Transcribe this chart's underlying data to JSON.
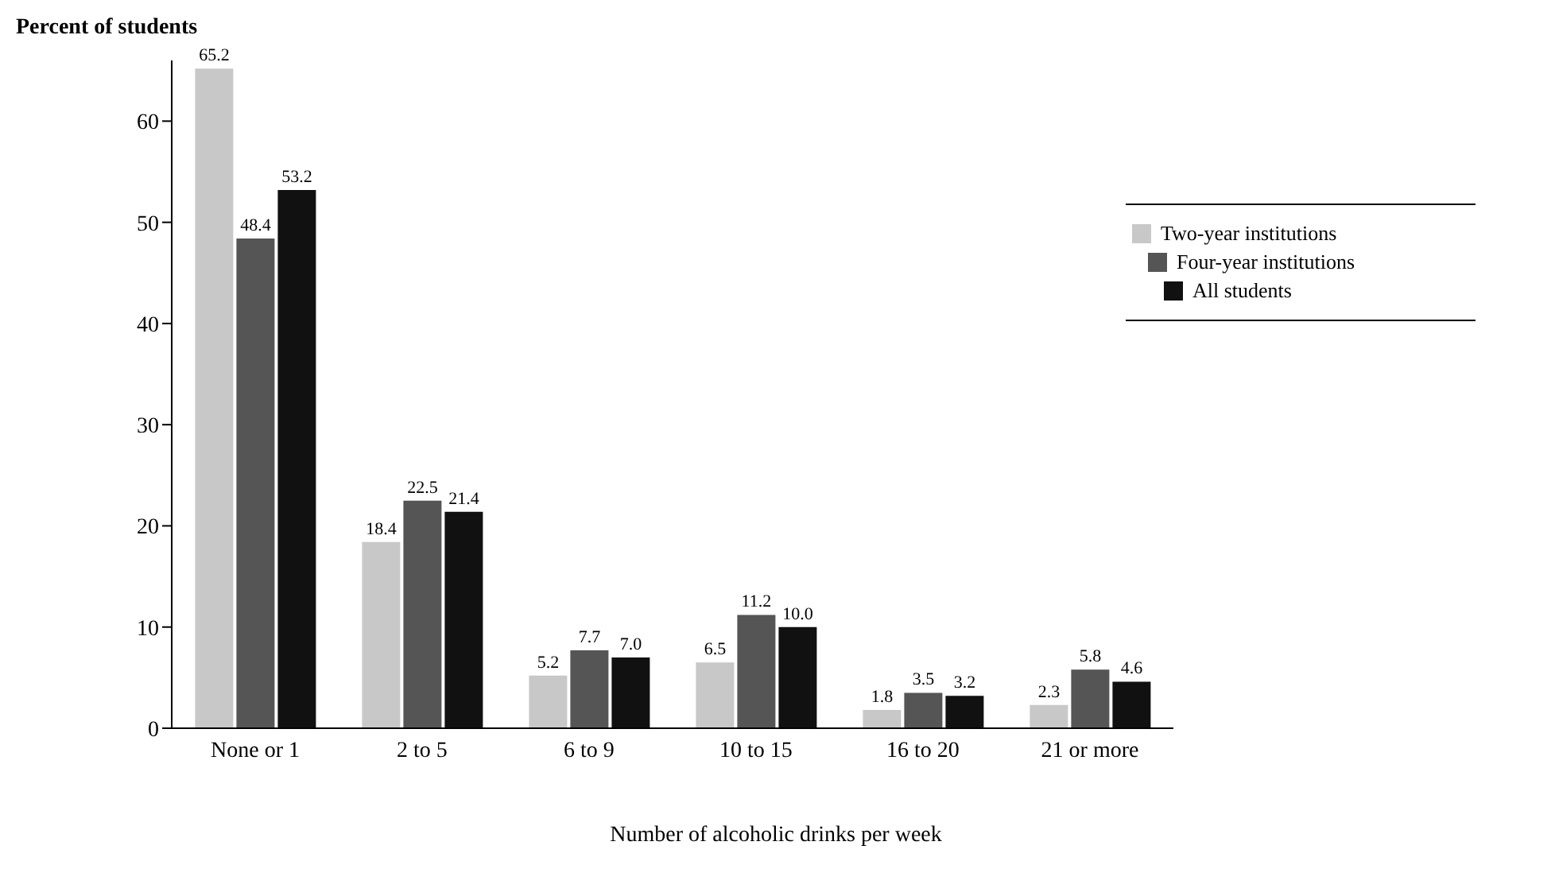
{
  "chart_data": {
    "type": "bar",
    "ylabel": "Percent of students",
    "xlabel": "Number of alcoholic drinks per week",
    "categories": [
      "None or 1",
      "2 to 5",
      "6 to 9",
      "10 to 15",
      "16 to 20",
      "21 or more"
    ],
    "series": [
      {
        "name": "Two-year institutions",
        "color": "#c8c8c8",
        "values": [
          65.2,
          18.4,
          5.2,
          6.5,
          1.8,
          2.3
        ],
        "value_labels": [
          "65.2",
          "18.4",
          "5.2",
          "6.5",
          "1.8",
          "2.3"
        ]
      },
      {
        "name": "Four-year institutions",
        "color": "#555555",
        "values": [
          48.4,
          22.5,
          7.7,
          11.2,
          3.5,
          5.8
        ],
        "value_labels": [
          "48.4",
          "22.5",
          "7.7",
          "11.2",
          "3.5",
          "5.8"
        ]
      },
      {
        "name": "All students",
        "color": "#111111",
        "values": [
          53.2,
          21.4,
          7.0,
          10.0,
          3.2,
          4.6
        ],
        "value_labels": [
          "53.2",
          "21.4",
          "7.0",
          "10.0",
          "3.2",
          "4.6"
        ]
      }
    ],
    "ylim": [
      0,
      66
    ],
    "yticks": [
      0,
      10,
      20,
      30,
      40,
      50,
      60
    ],
    "grid": false,
    "legend": "top right"
  }
}
